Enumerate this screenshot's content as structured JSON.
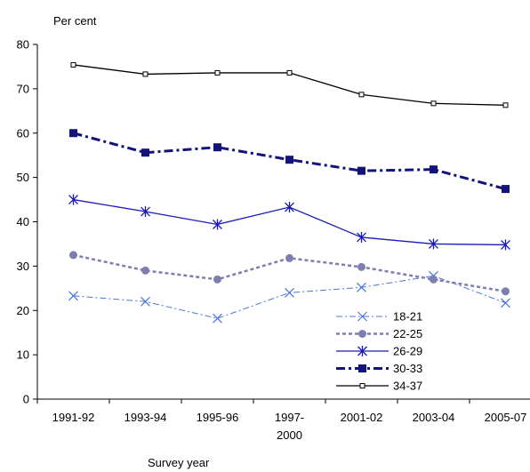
{
  "chart_data": {
    "type": "line",
    "title": "",
    "ylabel": "Per cent",
    "xlabel": "Survey year",
    "ylim": [
      0,
      80
    ],
    "y_ticks": [
      0,
      10,
      20,
      30,
      40,
      50,
      60,
      70,
      80
    ],
    "grid": false,
    "legend_position": "bottom-right",
    "categories": [
      [
        "1991-92"
      ],
      [
        "1993-94"
      ],
      [
        "1995-96"
      ],
      [
        "1997-",
        "2000"
      ],
      [
        "2001-02"
      ],
      [
        "2003-04"
      ],
      [
        "2005-07"
      ]
    ],
    "series": [
      {
        "name": "18-21",
        "values": [
          23.3,
          22.0,
          18.2,
          24.0,
          25.2,
          27.8,
          21.7
        ],
        "color": "#4a77d8",
        "marker": "x-cross",
        "line_style": "dash-dot"
      },
      {
        "name": "22-25",
        "values": [
          32.5,
          29.0,
          27.0,
          31.8,
          29.8,
          27.0,
          24.3
        ],
        "color": "#7e7eb0",
        "marker": "circle",
        "line_style": "dashed"
      },
      {
        "name": "26-29",
        "values": [
          45.0,
          42.3,
          39.4,
          43.3,
          36.5,
          35.0,
          34.8
        ],
        "color": "#1a1ab8",
        "marker": "asterisk",
        "line_style": "solid"
      },
      {
        "name": "30-33",
        "values": [
          60.0,
          55.6,
          56.8,
          54.0,
          51.5,
          51.8,
          47.4
        ],
        "color": "#13137c",
        "marker": "square",
        "line_style": "dash-dot-bold"
      },
      {
        "name": "34-37",
        "values": [
          75.4,
          73.3,
          73.6,
          73.6,
          68.7,
          66.7,
          66.3
        ],
        "color": "#000000",
        "marker": "open-square",
        "line_style": "solid"
      }
    ]
  }
}
